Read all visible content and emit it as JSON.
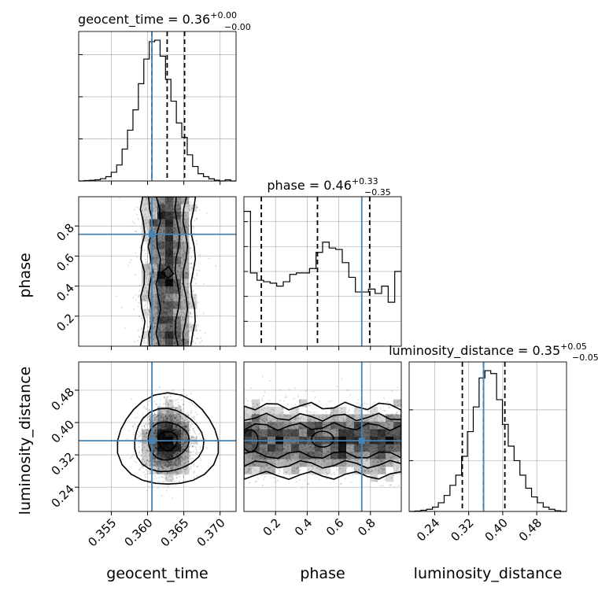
{
  "chart_data": {
    "type": "corner",
    "parameters": [
      "geocent_time",
      "phase",
      "luminosity_distance"
    ],
    "truths": {
      "geocent_time": 0.3606,
      "phase": 0.745,
      "luminosity_distance": 0.355
    },
    "ranges": {
      "geocent_time": [
        0.3505,
        0.3722
      ],
      "phase": [
        0.0,
        0.995
      ],
      "luminosity_distance": [
        0.18,
        0.55
      ]
    },
    "titles": [
      {
        "param": "geocent_time",
        "label": "geocent_time = 0.36",
        "sup": "+0.00",
        "sub": "−0.00"
      },
      {
        "param": "phase",
        "label": "phase = 0.46",
        "sup": "+0.33",
        "sub": "−0.35"
      },
      {
        "param": "luminosity_distance",
        "label": "luminosity_distance = 0.35",
        "sup": "+0.05",
        "sub": "−0.05"
      }
    ],
    "axis_labels": {
      "geocent_time": "geocent_time",
      "phase": "phase",
      "luminosity_distance": "luminosity_distance"
    },
    "ticks": {
      "geocent_time": {
        "values": [
          0.355,
          0.36,
          0.365,
          0.37
        ],
        "labels": [
          "0.355",
          "0.360",
          "0.365",
          "0.370"
        ]
      },
      "phase": {
        "values": [
          0.2,
          0.4,
          0.6,
          0.8
        ],
        "labels": [
          "0.2",
          "0.4",
          "0.6",
          "0.8"
        ]
      },
      "luminosity_distance": {
        "values": [
          0.24,
          0.32,
          0.4,
          0.48
        ],
        "labels": [
          "0.24",
          "0.32",
          "0.40",
          "0.48"
        ]
      }
    },
    "histograms": {
      "geocent_time": {
        "quantiles": [
          0.3606,
          0.3627,
          0.3651
        ],
        "counts": [
          0,
          0.3,
          0.5,
          0.8,
          1.6,
          3,
          6,
          11,
          22,
          35,
          49,
          67,
          84,
          96,
          97,
          86,
          70,
          55,
          40,
          30,
          18,
          10,
          5,
          3,
          1.5,
          0.5,
          0,
          0.8,
          0
        ],
        "ymax": 103,
        "ytick_values": [
          0,
          29,
          58,
          87
        ]
      },
      "phase": {
        "quantiles": [
          0.11,
          0.465,
          0.795
        ],
        "counts": [
          92,
          50,
          45,
          44,
          43,
          41,
          44,
          49,
          50,
          50,
          53,
          64,
          71,
          67,
          66,
          57,
          47,
          37,
          37,
          39,
          36,
          41,
          30,
          51
        ],
        "ymax": 102,
        "ytick_values": [
          0,
          17,
          34,
          51,
          68,
          85
        ]
      },
      "luminosity_distance": {
        "quantiles": [
          0.305,
          0.355,
          0.405
        ],
        "counts": [
          0,
          0.3,
          0.8,
          1.5,
          3,
          6,
          11,
          18,
          25,
          38,
          55,
          72,
          92,
          97,
          95,
          77,
          60,
          45,
          35,
          25,
          16,
          10,
          6,
          3,
          1.5,
          0.5,
          0
        ],
        "ymax": 103,
        "ytick_values": [
          0,
          35,
          70
        ]
      }
    },
    "samples": {
      "geocent_time_phase": {
        "mean_x": 0.3628,
        "sd_x": 0.0017,
        "n": 2600
      },
      "geocent_time_luminosity_distance": {
        "mean_x": 0.3628,
        "sd_x": 0.0017,
        "mean_y": 0.355,
        "sd_y": 0.042,
        "n": 2600
      },
      "phase_luminosity_distance": {
        "mean_y": 0.355,
        "sd_y": 0.042,
        "n": 2600
      }
    }
  }
}
